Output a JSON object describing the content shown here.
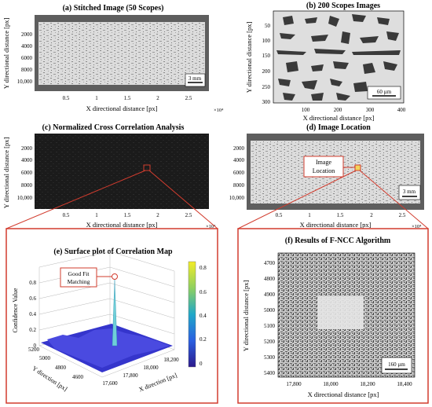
{
  "panels": {
    "a": {
      "title": "(a) Stitched Image (50 Scopes)",
      "xlabel": "X directional distance [px]",
      "ylabel": "Y directional distance [px]",
      "yticks": [
        "2000",
        "4000",
        "6000",
        "8000",
        "10,000"
      ],
      "xticks": [
        "0.5",
        "1",
        "1.5",
        "2",
        "2.5"
      ],
      "exponent": "×10⁴",
      "scalebar": "3 mm"
    },
    "b": {
      "title": "(b) 200 Scopes Images",
      "xlabel": "X directional distance [px]",
      "ylabel": "Y directional distance [px]",
      "yticks": [
        "50",
        "100",
        "150",
        "200",
        "250",
        "300"
      ],
      "xticks": [
        "100",
        "200",
        "300",
        "400"
      ],
      "scalebar": "60 µm"
    },
    "c": {
      "title": "(c) Normalized Cross Correlation Analysis",
      "xlabel": "X directional distance [px]",
      "ylabel": "Y directional distance [px]",
      "yticks": [
        "2000",
        "4000",
        "6000",
        "8000",
        "10,000"
      ],
      "xticks": [
        "0.5",
        "1",
        "1.5",
        "2",
        "2.5"
      ],
      "exponent": "×10⁴"
    },
    "d": {
      "title": "(d) Image Location",
      "xlabel": "X directional distance [px]",
      "yticks": [
        "2000",
        "4000",
        "6000",
        "8000",
        "10,000"
      ],
      "xticks": [
        "0.5",
        "1",
        "1.5",
        "2",
        "2.5"
      ],
      "exponent": "×10⁴",
      "scalebar": "3 mm",
      "callout_line1": "Image",
      "callout_line2": "Location"
    },
    "e": {
      "title": "(e) Surface plot of Correlation Map",
      "zlabel": "Confidence Value",
      "zticks": [
        "0",
        "0.2",
        "0.4",
        "0.6",
        "0.8"
      ],
      "yticks": [
        "5200",
        "5000",
        "4800",
        "4600"
      ],
      "xticks": [
        "17,600",
        "17,800",
        "18,000",
        "18,200"
      ],
      "ylabel": "Y direction [px]",
      "xlabel": "X direction [px]",
      "colorbar_ticks": [
        "0.8",
        "0.6",
        "0.4",
        "0.2",
        "0"
      ],
      "callout_line1": "Good Fit",
      "callout_line2": "Matching"
    },
    "f": {
      "title": "(f) Results of F-NCC Algorithm",
      "ylabel": "Y directional distance [px]",
      "xlabel": "X directional distance [px]",
      "yticks": [
        "4700",
        "4800",
        "4900",
        "5000",
        "5100",
        "5200",
        "5300",
        "5400"
      ],
      "xticks": [
        "17,800",
        "18,000",
        "18,200",
        "18,400"
      ],
      "scalebar": "160 µm"
    }
  },
  "colors": {
    "highlight": "#d23c2e",
    "surface": "#3535cc",
    "grain_dark": "#3a3a3a",
    "correlation_bg": "#1e1e1e"
  }
}
